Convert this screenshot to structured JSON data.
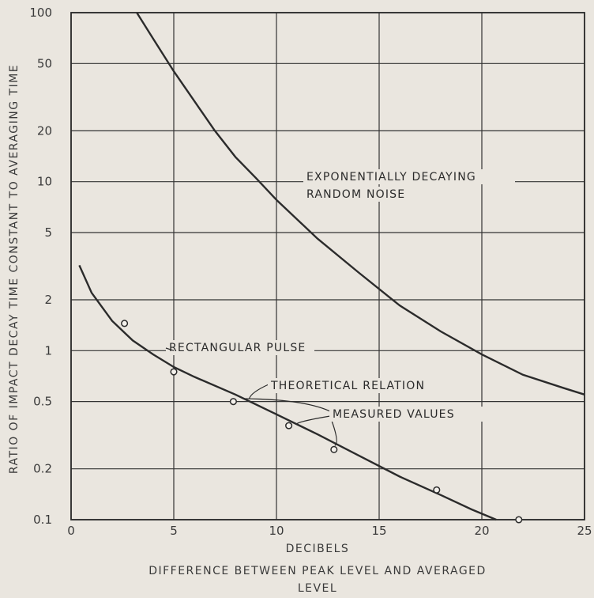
{
  "chart_data": {
    "type": "line",
    "xlabel": "DECIBELS",
    "xlabel2": "DIFFERENCE BETWEEN PEAK LEVEL AND AVERAGED LEVEL",
    "ylabel": "RATIO OF IMPACT DECAY TIME CONSTANT TO AVERAGING TIME",
    "xlim": [
      0,
      25
    ],
    "ylim": [
      0.1,
      100
    ],
    "yscale": "log",
    "grid": true,
    "x_ticks": [
      "0",
      "5",
      "10",
      "15",
      "20",
      "25"
    ],
    "y_ticks": [
      "0.1",
      "0.2",
      "0.5",
      "1",
      "2",
      "5",
      "10",
      "20",
      "50",
      "100"
    ],
    "series": [
      {
        "name": "EXPONENTIALLY DECAYING RANDOM NOISE",
        "x": [
          3.2,
          4.0,
          5.0,
          6.0,
          7.0,
          8.0,
          9.0,
          10.0,
          12.0,
          14.0,
          16.0,
          18.0,
          20.0,
          22.0,
          24.0,
          25.0
        ],
        "y": [
          100,
          70,
          45,
          30,
          20,
          14,
          10.5,
          7.8,
          4.6,
          2.9,
          1.85,
          1.3,
          0.95,
          0.72,
          0.6,
          0.55
        ]
      },
      {
        "name": "RECTANGULAR PULSE",
        "x": [
          0.4,
          1.0,
          2.0,
          3.0,
          4.0,
          5.0,
          6.0,
          8.0,
          10.0,
          12.0,
          14.0,
          16.0,
          18.0,
          19.5,
          20.7
        ],
        "y": [
          3.2,
          2.2,
          1.5,
          1.15,
          0.95,
          0.8,
          0.7,
          0.55,
          0.42,
          0.32,
          0.24,
          0.18,
          0.14,
          0.115,
          0.1
        ]
      }
    ],
    "measured_values": {
      "x": [
        2.6,
        5.0,
        7.9,
        10.6,
        12.8,
        17.8,
        21.8
      ],
      "y": [
        1.45,
        0.75,
        0.5,
        0.36,
        0.26,
        0.15,
        0.1
      ]
    },
    "annotations": {
      "noise_line1": "EXPONENTIALLY DECAYING",
      "noise_line2": "RANDOM NOISE",
      "rect": "RECTANGULAR PULSE",
      "theory": "THEORETICAL RELATION",
      "measured": "MEASURED VALUES"
    }
  }
}
